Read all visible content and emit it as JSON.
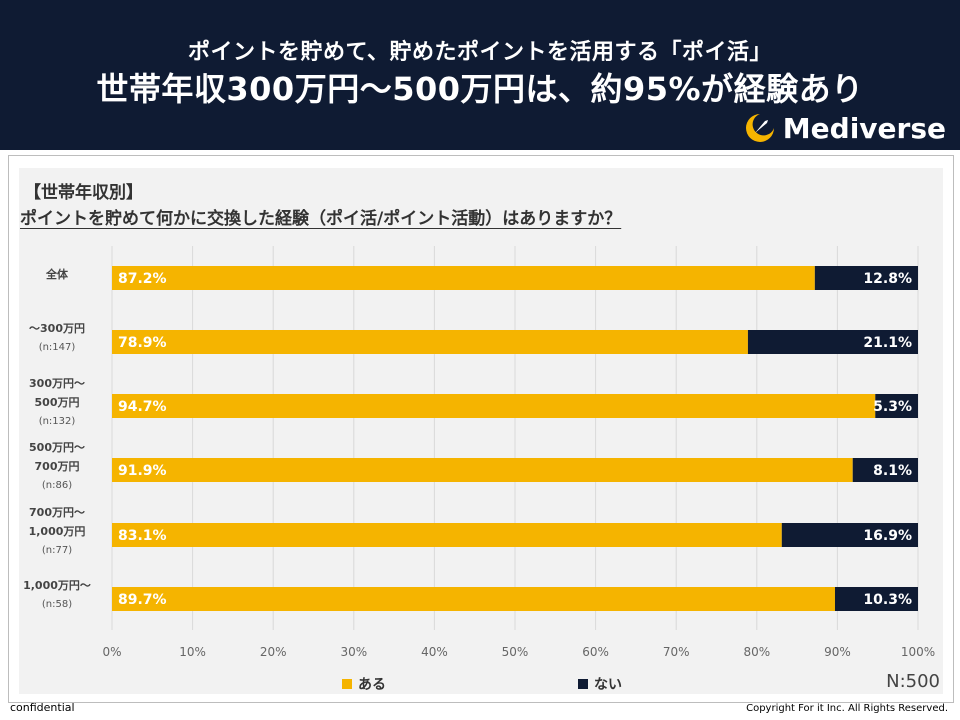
{
  "header": {
    "title_line1": "ポイントを貯めて、貯めたポイントを活用する「ポイ活」",
    "title_line2": "世帯年収300万円〜500万円は、約95%が経験あり",
    "logo_text": "Mediverse"
  },
  "chart_data": {
    "type": "bar",
    "orientation": "horizontal",
    "stacked": true,
    "section_label": "【世帯年収別】",
    "title": "ポイントを貯めて何かに交換した経験（ポイ活/ポイント活動）はありますか？",
    "categories": [
      {
        "line1": "全体",
        "line2": "",
        "n": ""
      },
      {
        "line1": "〜300万円",
        "line2": "",
        "n": "(n:147)"
      },
      {
        "line1": "300万円〜",
        "line2": "500万円",
        "n": "(n:132)"
      },
      {
        "line1": "500万円〜",
        "line2": "700万円",
        "n": "(n:86)"
      },
      {
        "line1": "700万円〜",
        "line2": "1,000万円",
        "n": "(n:77)"
      },
      {
        "line1": "1,000万円〜",
        "line2": "",
        "n": "(n:58)"
      }
    ],
    "series": [
      {
        "name": "ある",
        "color": "#f5b400",
        "values": [
          87.2,
          78.9,
          94.7,
          91.9,
          83.1,
          89.7
        ],
        "labels": [
          "87.2%",
          "78.9%",
          "94.7%",
          "91.9%",
          "83.1%",
          "89.7%"
        ]
      },
      {
        "name": "ない",
        "color": "#0f1b33",
        "values": [
          12.8,
          21.1,
          5.3,
          8.1,
          16.9,
          10.3
        ],
        "labels": [
          "12.8%",
          "21.1%",
          "5.3%",
          "8.1%",
          "16.9%",
          "10.3%"
        ]
      }
    ],
    "xlim": [
      0,
      100
    ],
    "x_ticks": [
      "0%",
      "10%",
      "20%",
      "30%",
      "40%",
      "50%",
      "60%",
      "70%",
      "80%",
      "90%",
      "100%"
    ],
    "grid": true,
    "legend_position": "bottom",
    "n_label": "N:500"
  },
  "footer": {
    "left": "confidential",
    "right": "Copyright For it Inc. All Rights Reserved."
  }
}
